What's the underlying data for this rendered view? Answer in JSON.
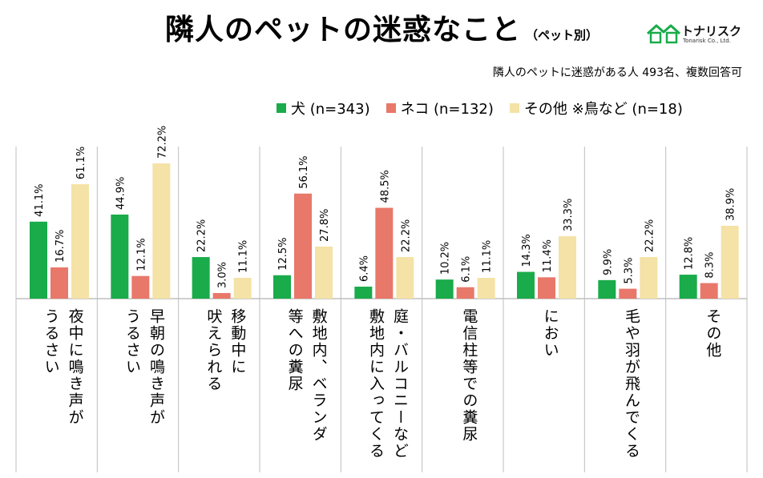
{
  "title": "隣人のペットの迷惑なこと",
  "title_note": "（ペット別）",
  "logo": {
    "name": "トナリスク",
    "sub": "Tonarisk Co., Ltd."
  },
  "subtitle": "隣人のペットに迷惑がある人 493名、複数回答可",
  "colors": {
    "dog": "#1aab4b",
    "cat": "#e8786a",
    "other": "#f4e2a6",
    "axis": "#bfbfbf"
  },
  "chart_data": {
    "type": "bar",
    "categories": [
      "夜中に鳴き声が\nうるさい",
      "早朝の鳴き声が\nうるさい",
      "移動中に\n吠えられる",
      "敷地内、ベランダ\n等への糞尿",
      "庭・バルコニーなど\n敷地内に入ってくる",
      "電信柱等での糞尿",
      "におい",
      "毛や羽が飛んでくる",
      "その他"
    ],
    "series": [
      {
        "name": "犬 (n=343)",
        "values": [
          41.1,
          44.9,
          22.2,
          12.5,
          6.4,
          10.2,
          14.3,
          9.9,
          12.8
        ]
      },
      {
        "name": "ネコ (n=132)",
        "values": [
          16.7,
          12.1,
          3.0,
          56.1,
          48.5,
          6.1,
          11.4,
          5.3,
          8.3
        ]
      },
      {
        "name": "その他 ※鳥など (n=18)",
        "values": [
          61.1,
          72.2,
          11.1,
          27.8,
          22.2,
          11.1,
          33.3,
          22.2,
          38.9
        ]
      }
    ],
    "data_labels": [
      [
        "41.1%",
        "44.9%",
        "22.2%",
        "12.5%",
        "6.4%",
        "10.2%",
        "14.3%",
        "9.9%",
        "12.8%"
      ],
      [
        "16.7%",
        "12.1%",
        "3.0%",
        "56.1%",
        "48.5%",
        "6.1%",
        "11.4%",
        "5.3%",
        "8.3%"
      ],
      [
        "61.1%",
        "72.2%",
        "11.1%",
        "27.8%",
        "22.2%",
        "11.1%",
        "33.3%",
        "22.2%",
        "38.9%"
      ]
    ],
    "ylim": [
      0,
      80
    ],
    "grid": false,
    "legend_position": "top-right"
  }
}
